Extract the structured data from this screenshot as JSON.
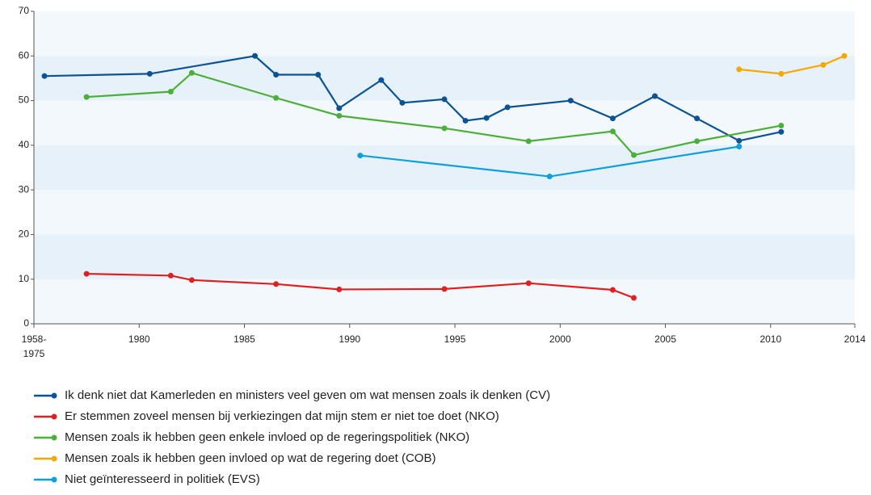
{
  "chart_data": {
    "type": "line",
    "xlim": [
      1975,
      2014
    ],
    "xticks": [
      {
        "value": 1975,
        "label": "1958-\n1975"
      },
      1980,
      1985,
      1990,
      1995,
      2000,
      2005,
      2010,
      2014
    ],
    "ylim": [
      0,
      70
    ],
    "yticks": [
      0,
      10,
      20,
      30,
      40,
      50,
      60,
      70
    ],
    "series": [
      {
        "name": "Ik denk niet dat Kamerleden en ministers veel geven om wat mensen zoals ik denken (CV)",
        "color": "#0b5394",
        "x": [
          1975.5,
          1980.5,
          1985.5,
          1986.5,
          1988.5,
          1989.5,
          1991.5,
          1992.5,
          1994.5,
          1995.5,
          1996.5,
          1997.5,
          2000.5,
          2002.5,
          2004.5,
          2006.5,
          2008.5,
          2010.5
        ],
        "values": [
          55.5,
          56,
          60,
          55.8,
          55.8,
          48.3,
          54.6,
          49.5,
          50.3,
          45.5,
          46.1,
          48.5,
          50,
          46,
          51,
          46,
          41,
          43
        ]
      },
      {
        "name": "Er stemmen zoveel mensen bij verkiezingen dat mijn stem er niet toe doet (NKO)",
        "color": "#e02020",
        "x": [
          1977.5,
          1981.5,
          1982.5,
          1986.5,
          1989.5,
          1994.5,
          1998.5,
          2002.5,
          2003.5
        ],
        "values": [
          11.2,
          10.8,
          9.8,
          8.9,
          7.7,
          7.8,
          9.1,
          7.6,
          5.8
        ]
      },
      {
        "name": "Mensen zoals ik hebben geen enkele invloed op de regeringspolitiek (NKO)",
        "color": "#4caf3a",
        "x": [
          1977.5,
          1981.5,
          1982.5,
          1986.5,
          1989.5,
          1994.5,
          1998.5,
          2002.5,
          2003.5,
          2006.5,
          2010.5
        ],
        "values": [
          50.8,
          52,
          56.2,
          50.6,
          46.6,
          43.8,
          40.9,
          43.1,
          37.8,
          40.9,
          44.4
        ]
      },
      {
        "name": "Mensen zoals ik hebben geen invloed op wat de regering doet (COB)",
        "color": "#f5a800",
        "x": [
          2008.5,
          2010.5,
          2012.5,
          2013.5
        ],
        "values": [
          57,
          56,
          58,
          60
        ]
      },
      {
        "name": "Niet geïnteresseerd in politiek (EVS)",
        "color": "#0ea0dd",
        "x": [
          1990.5,
          1999.5,
          2008.5
        ],
        "values": [
          37.7,
          33,
          39.7
        ]
      }
    ]
  }
}
